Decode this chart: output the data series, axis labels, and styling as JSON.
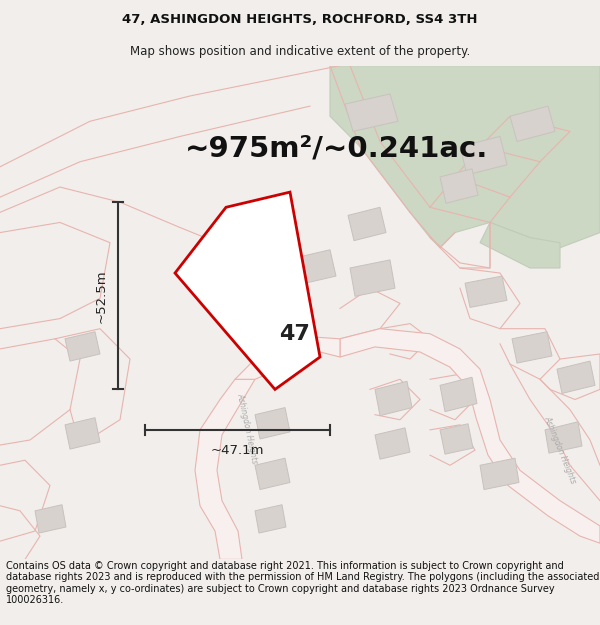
{
  "title_line1": "47, ASHINGDON HEIGHTS, ROCHFORD, SS4 3TH",
  "title_line2": "Map shows position and indicative extent of the property.",
  "area_label": "~975m²/~0.241ac.",
  "dim_vertical": "~52.5m",
  "dim_horizontal": "~47.1m",
  "property_label": "47",
  "footer_text": "Contains OS data © Crown copyright and database right 2021. This information is subject to Crown copyright and database rights 2023 and is reproduced with the permission of HM Land Registry. The polygons (including the associated geometry, namely x, y co-ordinates) are subject to Crown copyright and database rights 2023 Ordnance Survey 100026316.",
  "bg_color": "#f2eeeb",
  "map_bg_color": "#f2eeeb",
  "road_outline_color": "#e8b4ae",
  "road_fill_color": "#f8f0ee",
  "building_color": "#d8d2ce",
  "building_edge_color": "#c8c2be",
  "green_color": "#ccd8c4",
  "green_edge_color": "#c0ccb8",
  "property_edge_color": "#cc0000",
  "property_fill_color": "#ffffff",
  "dim_line_color": "#333333",
  "title_fontsize": 9.5,
  "subtitle_fontsize": 8.5,
  "area_fontsize": 21,
  "label_fontsize": 16,
  "dim_fontsize": 9.5,
  "footer_fontsize": 7.0
}
